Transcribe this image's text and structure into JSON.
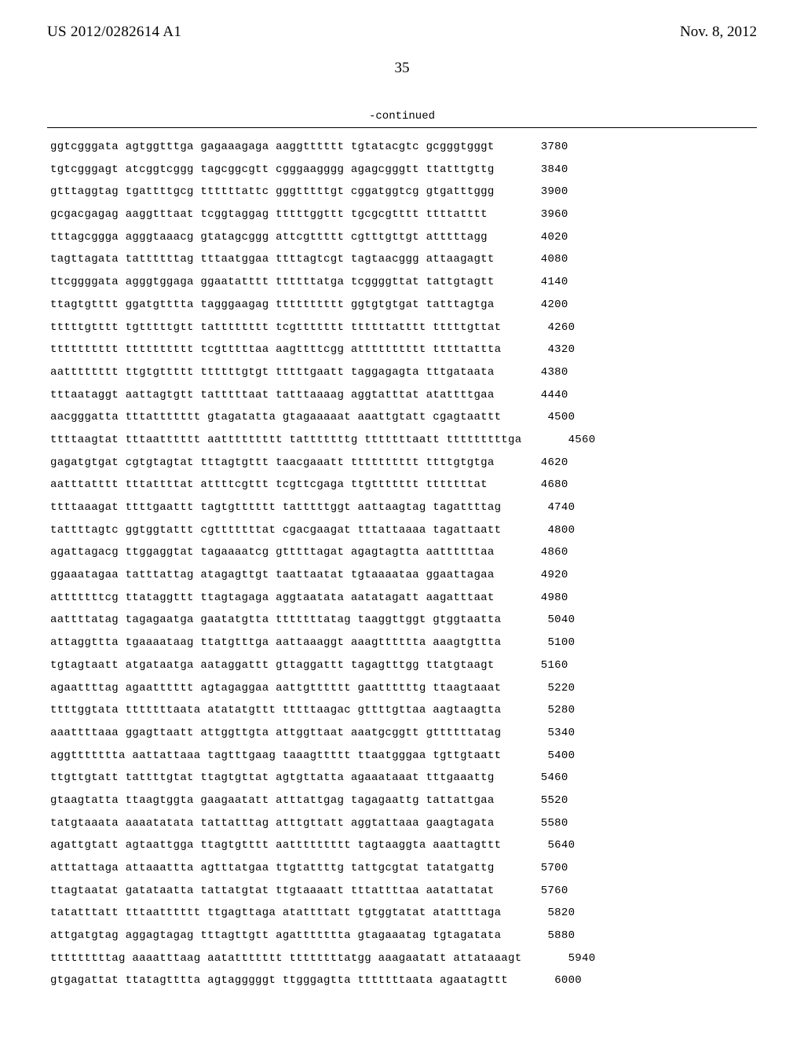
{
  "header": {
    "publication_number": "US 2012/0282614 A1",
    "publication_date": "Nov. 8, 2012",
    "page_number": "35",
    "continued_label": "-continued"
  },
  "sequence": {
    "font_family": "Courier New",
    "font_size_pt": 10,
    "line_spacing": 2.05,
    "text_color": "#000000",
    "background_color": "#ffffff",
    "rule_color": "#000000",
    "rows": [
      {
        "seq": "ggtcgggata agtggtttga gagaaagaga aaggtttttt tgtatacgtc gcgggtgggt",
        "pos": 3780
      },
      {
        "seq": "tgtcgggagt atcggtcggg tagcggcgtt cgggaagggg agagcgggtt ttatttgttg",
        "pos": 3840
      },
      {
        "seq": "gtttaggtag tgattttgcg ttttttattc gggtttttgt cggatggtcg gtgatttggg",
        "pos": 3900
      },
      {
        "seq": "gcgacgagag aaggtttaat tcggtaggag tttttggttt tgcgcgtttt ttttatttt ",
        "pos": 3960
      },
      {
        "seq": "tttagcggga agggtaaacg gtatagcggg attcgttttt cgtttgttgt atttttagg ",
        "pos": 4020
      },
      {
        "seq": "tagttagata tattttttag tttaatggaa ttttagtcgt tagtaacggg attaagagtt",
        "pos": 4080
      },
      {
        "seq": "ttcggggata agggtggaga ggaatatttt ttttttatga tcggggttat tattgtagtt",
        "pos": 4140
      },
      {
        "seq": "ttagtgtttt ggatgtttta tagggaagag tttttttttt ggtgtgtgat tatttagtga",
        "pos": 4200
      },
      {
        "seq": "tttttgtttt tgtttttgtt tatttttttt tcgttttttt ttttttatttt tttttgttat",
        "pos": 4260
      },
      {
        "seq": "tttttttttt tttttttttt tcgtttttaa aagttttcgg atttttttttt tttttattta",
        "pos": 4320
      },
      {
        "seq": "aatttttttt ttgtgttttt ttttttgtgt tttttgaatt taggagagta tttgataata",
        "pos": 4380
      },
      {
        "seq": "tttaataggt aattagtgtt tatttttaat tatttaaaag aggtatttat atattttgaa",
        "pos": 4440
      },
      {
        "seq": "aacgggatta tttattttttt gtagatatta gtagaaaaat aaattgtatt cgagtaattt",
        "pos": 4500
      },
      {
        "seq": "ttttaagtat tttaatttttt aattttttttt tatttttttg tttttttaatt tttttttttga",
        "pos": 4560
      },
      {
        "seq": "gagatgtgat cgtgtagtat tttagtgttt taacgaaatt tttttttttt ttttgtgtga",
        "pos": 4620
      },
      {
        "seq": "aatttatttt tttattttat attttcgttt tcgttcgaga ttgttttttt tttttttat ",
        "pos": 4680
      },
      {
        "seq": "ttttaaagat ttttgaattt tagtgtttttt tatttttggt aattaagtag tagattttag",
        "pos": 4740
      },
      {
        "seq": "tattttagtc ggtggtattt cgtttttttat cgacgaagat tttattaaaa tagattaatt",
        "pos": 4800
      },
      {
        "seq": "agattagacg ttggaggtat tagaaaatcg gtttttagat agagtagtta aattttttaa",
        "pos": 4860
      },
      {
        "seq": "ggaaatagaa tatttattag atagagttgt taattaatat tgtaaaataa ggaattagaa",
        "pos": 4920
      },
      {
        "seq": "atttttttcg ttataggttt ttagtagaga aggtaatata aatatagatt aagatttaat",
        "pos": 4980
      },
      {
        "seq": "aattttatag tagagaatga gaatatgtta tttttttatag taaggttggt gtggtaatta",
        "pos": 5040
      },
      {
        "seq": "attaggttta tgaaaataag ttatgtttga aattaaaggt aaagtttttta aaagtgttta",
        "pos": 5100
      },
      {
        "seq": "tgtagtaatt atgataatga aataggattt gttaggattt tagagtttgg ttatgtaagt",
        "pos": 5160
      },
      {
        "seq": "agaattttag agaatttttt agtagaggaa aattgtttttt gaattttttg ttaagtaaat",
        "pos": 5220
      },
      {
        "seq": "ttttggtata tttttttaata atatatgttt tttttaagac gttttgttaa aagtaagtta",
        "pos": 5280
      },
      {
        "seq": "aaattttaaa ggagttaatt attggttgta attggttaat aaatgcggtt gttttttatag",
        "pos": 5340
      },
      {
        "seq": "aggttttttta aattattaaa tagtttgaag taaagttttt ttaatgggaa tgttgtaatt",
        "pos": 5400
      },
      {
        "seq": "ttgttgtatt tattttgtat ttagtgttat agtgttatta agaaataaat tttgaaattg",
        "pos": 5460
      },
      {
        "seq": "gtaagtatta ttaagtggta gaagaatatt atttattgag tagagaattg tattattgaa",
        "pos": 5520
      },
      {
        "seq": "tatgtaaata aaaatatata tattatttag atttgttatt aggtattaaa gaagtagata",
        "pos": 5580
      },
      {
        "seq": "agattgtatt agtaattgga ttagtgtttt aattttttttt tagtaaggta aaattagttt",
        "pos": 5640
      },
      {
        "seq": "atttattaga attaaattta agtttatgaa ttgtattttg tattgcgtat tatatgattg",
        "pos": 5700
      },
      {
        "seq": "ttagtaatat gatataatta tattatgtat ttgtaaaatt tttattttaa aatattatat",
        "pos": 5760
      },
      {
        "seq": "tatatttatt tttaatttttt ttgagttaga atattttatt tgtggtatat atattttaga",
        "pos": 5820
      },
      {
        "seq": "attgatgtag aggagtagag tttagttgtt agattttttta gtagaaatag tgtagatata",
        "pos": 5880
      },
      {
        "seq": "tttttttttag aaaatttaag aatattttttt ttttttttatgg aaagaatatt attataaagt",
        "pos": 5940
      },
      {
        "seq": "gtgagattat ttatagtttta agtagggggt ttgggagtta tttttttaata agaatagttt",
        "pos": 6000
      }
    ]
  }
}
